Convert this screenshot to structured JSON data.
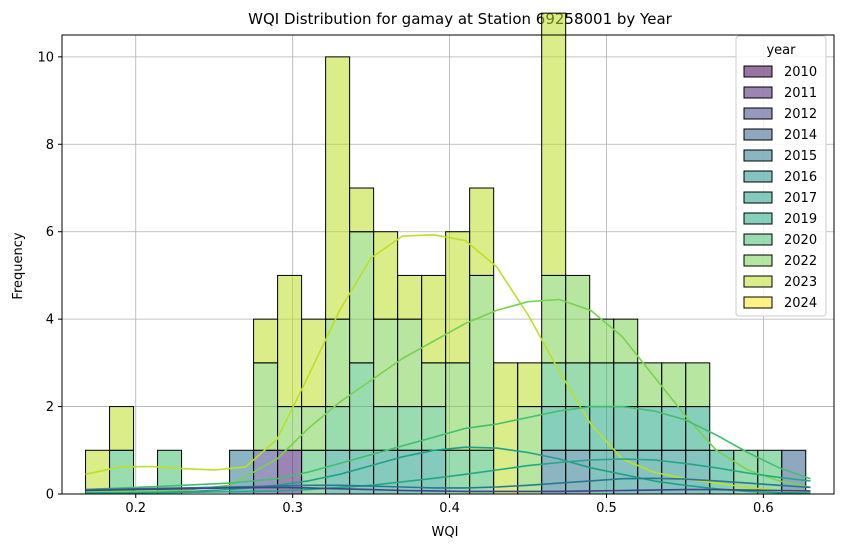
{
  "chart_data": {
    "type": "bar",
    "subtype": "stacked-overlapping-histogram-with-kde",
    "title": "WQI Distribution for gamay at Station 69258001 by Year",
    "xlabel": "WQI",
    "ylabel": "Frequency",
    "xlim": [
      0.153,
      0.645
    ],
    "ylim": [
      0,
      10.5
    ],
    "x_ticks": [
      0.2,
      0.3,
      0.4,
      0.5,
      0.6
    ],
    "y_ticks": [
      0,
      2,
      4,
      6,
      8,
      10
    ],
    "grid": true,
    "legend": {
      "title": "year",
      "position": "top-right"
    },
    "bins": {
      "start": 0.168,
      "width": 0.0153,
      "count": 30
    },
    "series": [
      {
        "name": "2010",
        "color": "#440154",
        "counts": [
          0,
          0,
          0,
          0,
          0,
          0,
          0,
          0,
          0,
          0,
          0,
          0,
          0,
          0,
          0,
          0,
          0,
          0,
          0,
          0,
          0,
          0,
          0,
          0,
          0,
          0,
          0,
          0,
          0,
          0
        ]
      },
      {
        "name": "2011",
        "color": "#482374",
        "counts": [
          0,
          0,
          0,
          0,
          0,
          0,
          0,
          0,
          1,
          0,
          0,
          0,
          0,
          0,
          0,
          0,
          0,
          0,
          0,
          0,
          0,
          0,
          0,
          0,
          0,
          0,
          0,
          0,
          0,
          0
        ]
      },
      {
        "name": "2012",
        "color": "#404387",
        "counts": [
          0,
          0,
          0,
          0,
          0,
          0,
          0,
          1,
          0,
          0,
          0,
          0,
          0,
          0,
          0,
          0,
          0,
          0,
          0,
          0,
          0,
          0,
          0,
          0,
          0,
          0,
          0,
          0,
          0,
          0
        ]
      },
      {
        "name": "2014",
        "color": "#345e8d",
        "counts": [
          0,
          0,
          0,
          0,
          0,
          0,
          0,
          0,
          0,
          0,
          0,
          0,
          0,
          0,
          0,
          0,
          0,
          0,
          0,
          0,
          0,
          0,
          0,
          0,
          0,
          0,
          0,
          0,
          0,
          1
        ]
      },
      {
        "name": "2015",
        "color": "#2a788e",
        "counts": [
          0,
          0,
          0,
          0,
          0,
          0,
          1,
          0,
          0,
          0,
          0,
          0,
          0,
          0,
          0,
          0,
          0,
          0,
          0,
          1,
          1,
          0,
          0,
          0,
          0,
          0,
          0,
          0,
          0,
          0
        ]
      },
      {
        "name": "2016",
        "color": "#21918c",
        "counts": [
          0,
          0,
          0,
          0,
          0,
          0,
          0,
          0,
          0,
          0,
          0,
          0,
          0,
          0,
          0,
          0,
          0,
          0,
          0,
          0,
          0,
          1,
          1,
          1,
          1,
          1,
          0,
          0,
          0,
          0
        ]
      },
      {
        "name": "2017",
        "color": "#1fa188",
        "counts": [
          0,
          0,
          0,
          0,
          0,
          0,
          0,
          0,
          0,
          0,
          1,
          1,
          1,
          1,
          1,
          0,
          0,
          0,
          0,
          0,
          0,
          0,
          0,
          0,
          0,
          0,
          0,
          0,
          0,
          0
        ]
      },
      {
        "name": "2019",
        "color": "#22a884",
        "counts": [
          0,
          0,
          0,
          0,
          0,
          0,
          0,
          0,
          0,
          0,
          0,
          0,
          0,
          0,
          0,
          0,
          0,
          0,
          0,
          1,
          1,
          1,
          1,
          1,
          1,
          1,
          1,
          0,
          0,
          0
        ]
      },
      {
        "name": "2020",
        "color": "#44bf70",
        "counts": [
          0,
          1,
          0,
          1,
          0,
          0,
          0,
          0,
          0,
          1,
          1,
          2,
          1,
          1,
          1,
          1,
          1,
          0,
          0,
          1,
          1,
          1,
          1,
          0,
          0,
          0,
          0,
          1,
          1,
          0
        ]
      },
      {
        "name": "2022",
        "color": "#7ad151",
        "counts": [
          0,
          0,
          0,
          0,
          0,
          0,
          0,
          2,
          1,
          1,
          2,
          3,
          2,
          2,
          1,
          2,
          4,
          0,
          2,
          2,
          2,
          1,
          1,
          1,
          1,
          1,
          0,
          0,
          0,
          0
        ]
      },
      {
        "name": "2023",
        "color": "#bddf26",
        "counts": [
          1,
          1,
          0,
          0,
          0,
          0,
          0,
          1,
          3,
          2,
          6,
          1,
          2,
          1,
          2,
          3,
          2,
          3,
          1,
          6,
          0,
          0,
          0,
          0,
          0,
          0,
          0,
          0,
          0,
          0
        ]
      },
      {
        "name": "2024",
        "color": "#fde725",
        "counts": [
          0,
          0,
          0,
          0,
          0,
          0,
          0,
          0,
          0,
          0,
          0,
          0,
          0,
          0,
          0,
          0,
          0,
          0,
          0,
          0,
          0,
          0,
          0,
          0,
          0,
          0,
          0,
          0,
          0,
          0
        ]
      }
    ],
    "kde": [
      {
        "year": "2023",
        "color": "#bddf26",
        "x": [
          0.168,
          0.19,
          0.21,
          0.23,
          0.25,
          0.27,
          0.29,
          0.31,
          0.33,
          0.35,
          0.37,
          0.39,
          0.41,
          0.43,
          0.45,
          0.47,
          0.49,
          0.51,
          0.53,
          0.55,
          0.57,
          0.59,
          0.61,
          0.63
        ],
        "y": [
          0.45,
          0.62,
          0.63,
          0.58,
          0.55,
          0.62,
          1.25,
          2.7,
          4.2,
          5.4,
          5.9,
          5.93,
          5.8,
          5.2,
          4.1,
          2.8,
          1.6,
          0.8,
          0.5,
          0.35,
          0.25,
          0.15,
          0.08,
          0.05
        ]
      },
      {
        "year": "2022",
        "color": "#7ad151",
        "x": [
          0.168,
          0.2,
          0.23,
          0.26,
          0.29,
          0.31,
          0.33,
          0.35,
          0.37,
          0.39,
          0.41,
          0.43,
          0.45,
          0.47,
          0.49,
          0.51,
          0.53,
          0.55,
          0.57,
          0.59,
          0.61,
          0.63
        ],
        "y": [
          0.05,
          0.06,
          0.08,
          0.2,
          0.8,
          1.5,
          2.1,
          2.6,
          3.1,
          3.5,
          3.9,
          4.2,
          4.4,
          4.45,
          4.2,
          3.6,
          2.7,
          1.8,
          1.0,
          0.55,
          0.3,
          0.15
        ]
      },
      {
        "year": "2020",
        "color": "#44bf70",
        "x": [
          0.168,
          0.2,
          0.23,
          0.26,
          0.29,
          0.31,
          0.33,
          0.35,
          0.37,
          0.39,
          0.41,
          0.43,
          0.45,
          0.47,
          0.49,
          0.51,
          0.53,
          0.55,
          0.57,
          0.59,
          0.61,
          0.63
        ],
        "y": [
          0.1,
          0.15,
          0.2,
          0.25,
          0.35,
          0.5,
          0.7,
          0.9,
          1.1,
          1.3,
          1.5,
          1.6,
          1.75,
          1.9,
          2.0,
          2.0,
          1.9,
          1.7,
          1.35,
          0.95,
          0.6,
          0.35
        ]
      },
      {
        "year": "2017",
        "color": "#1fa188",
        "x": [
          0.168,
          0.2,
          0.23,
          0.26,
          0.29,
          0.31,
          0.33,
          0.35,
          0.37,
          0.39,
          0.41,
          0.43,
          0.45,
          0.47,
          0.49,
          0.51,
          0.53,
          0.55,
          0.57,
          0.59,
          0.61,
          0.63
        ],
        "y": [
          0.02,
          0.03,
          0.05,
          0.1,
          0.2,
          0.3,
          0.45,
          0.65,
          0.85,
          1.0,
          1.07,
          1.05,
          0.95,
          0.8,
          0.6,
          0.45,
          0.3,
          0.2,
          0.12,
          0.06,
          0.03,
          0.02
        ]
      },
      {
        "year": "2019",
        "color": "#22a884",
        "x": [
          0.168,
          0.2,
          0.23,
          0.26,
          0.29,
          0.31,
          0.33,
          0.35,
          0.37,
          0.39,
          0.41,
          0.43,
          0.45,
          0.47,
          0.49,
          0.51,
          0.53,
          0.55,
          0.57,
          0.59,
          0.61,
          0.63
        ],
        "y": [
          0.02,
          0.03,
          0.04,
          0.05,
          0.07,
          0.1,
          0.15,
          0.2,
          0.28,
          0.36,
          0.45,
          0.55,
          0.65,
          0.72,
          0.78,
          0.8,
          0.78,
          0.7,
          0.6,
          0.48,
          0.38,
          0.3
        ]
      },
      {
        "year": "2015",
        "color": "#2a788e",
        "x": [
          0.168,
          0.2,
          0.23,
          0.26,
          0.29,
          0.31,
          0.33,
          0.35,
          0.37,
          0.39,
          0.41,
          0.43,
          0.45,
          0.47,
          0.49,
          0.51,
          0.53,
          0.55,
          0.57,
          0.59,
          0.61,
          0.63
        ],
        "y": [
          0.1,
          0.12,
          0.14,
          0.16,
          0.18,
          0.2,
          0.2,
          0.18,
          0.16,
          0.14,
          0.14,
          0.16,
          0.2,
          0.25,
          0.3,
          0.35,
          0.36,
          0.34,
          0.3,
          0.25,
          0.2,
          0.15
        ]
      },
      {
        "year": "2012",
        "color": "#404387",
        "x": [
          0.168,
          0.2,
          0.23,
          0.26,
          0.29,
          0.31,
          0.33,
          0.35,
          0.37,
          0.39,
          0.41,
          0.43,
          0.45,
          0.47,
          0.49,
          0.51,
          0.53,
          0.55,
          0.57,
          0.59,
          0.61,
          0.63
        ],
        "y": [
          0.08,
          0.1,
          0.12,
          0.14,
          0.15,
          0.14,
          0.12,
          0.1,
          0.08,
          0.07,
          0.06,
          0.06,
          0.06,
          0.06,
          0.07,
          0.08,
          0.09,
          0.1,
          0.1,
          0.09,
          0.08,
          0.07
        ]
      }
    ]
  }
}
